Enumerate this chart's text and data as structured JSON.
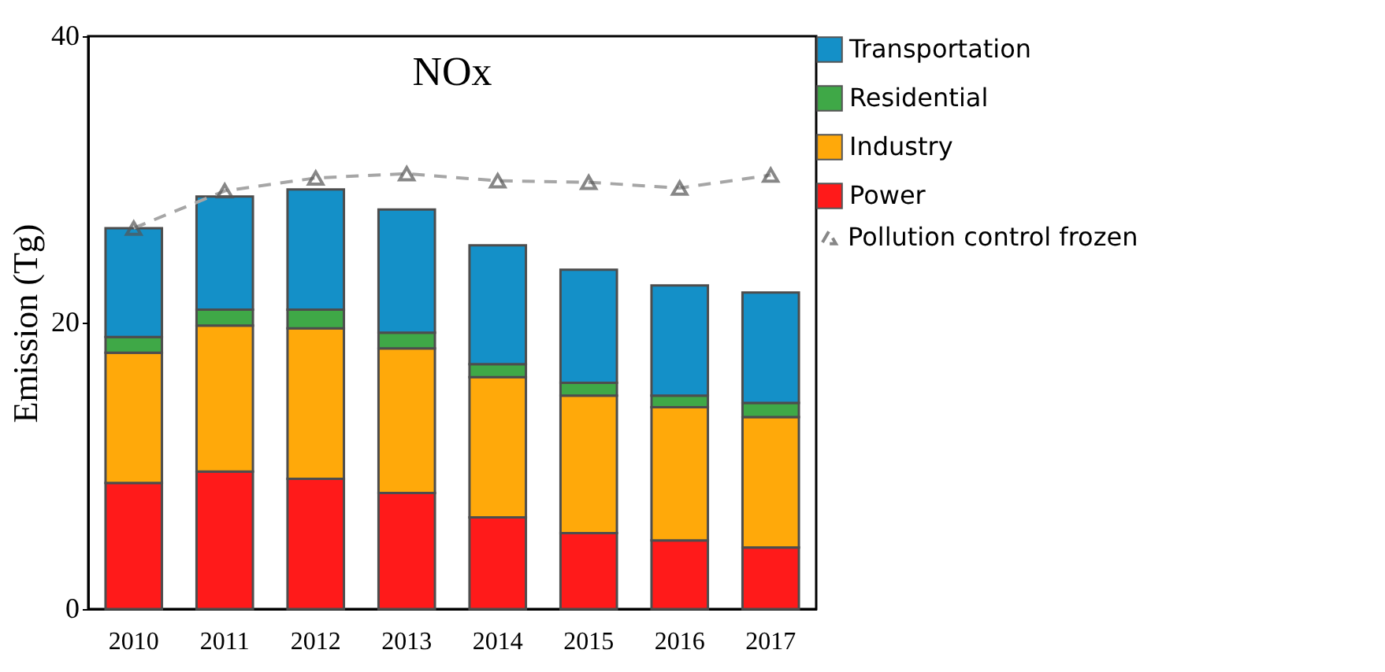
{
  "chart_data": {
    "type": "bar",
    "title": "NOx",
    "ylabel": "Emission (Tg)",
    "categories": [
      "2010",
      "2011",
      "2012",
      "2013",
      "2014",
      "2015",
      "2016",
      "2017"
    ],
    "stacked": true,
    "series": [
      {
        "name": "Power",
        "color": "#ff1a1a",
        "values": [
          8.8,
          9.6,
          9.1,
          8.1,
          6.4,
          5.3,
          4.8,
          4.3
        ]
      },
      {
        "name": "Industry",
        "color": "#ffa90a",
        "values": [
          9.1,
          10.2,
          10.5,
          10.1,
          9.8,
          9.6,
          9.3,
          9.1
        ]
      },
      {
        "name": "Residential",
        "color": "#3fa847",
        "values": [
          1.1,
          1.1,
          1.3,
          1.1,
          0.9,
          0.9,
          0.8,
          1.0
        ]
      },
      {
        "name": "Transportation",
        "color": "#1490c8",
        "values": [
          7.6,
          7.9,
          8.4,
          8.6,
          8.3,
          7.9,
          7.7,
          7.7
        ]
      },
      {
        "name": "Pollution control frozen",
        "type": "line",
        "color": "#a6a6a6",
        "marker": "triangle",
        "line_style": "dashed",
        "values": [
          26.6,
          29.2,
          30.1,
          30.4,
          29.9,
          29.8,
          29.4,
          30.3
        ]
      }
    ],
    "ylim": [
      0,
      40
    ],
    "yticks": [
      0,
      20,
      40
    ],
    "grid": false,
    "legend": "right"
  }
}
